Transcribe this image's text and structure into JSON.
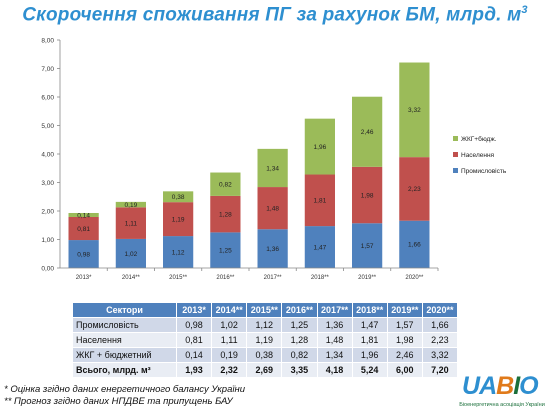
{
  "title": {
    "main": "Скорочення споживання ПГ за рахунок БМ, млрд. м",
    "sup": "3"
  },
  "chart_data": {
    "type": "bar",
    "stacked": true,
    "categories": [
      "2013*",
      "2014**",
      "2015**",
      "2016**",
      "2017**",
      "2018**",
      "2019**",
      "2020**"
    ],
    "series": [
      {
        "name": "Промисловість",
        "color": "#4f81bd",
        "values": [
          0.98,
          1.02,
          1.12,
          1.25,
          1.36,
          1.47,
          1.57,
          1.66
        ]
      },
      {
        "name": "Населення",
        "color": "#c0504d",
        "values": [
          0.81,
          1.11,
          1.19,
          1.28,
          1.48,
          1.81,
          1.98,
          2.23
        ]
      },
      {
        "name": "ЖКГ+бюдж.",
        "color": "#9bbb59",
        "values": [
          0.14,
          0.19,
          0.38,
          0.82,
          1.34,
          1.96,
          2.46,
          3.32
        ]
      }
    ],
    "segment_labels": [
      [
        "0,98",
        "1,02",
        "1,12",
        "1,25",
        "1,36",
        "1,47",
        "1,57",
        "1,66"
      ],
      [
        "0,81",
        "1,11",
        "1,19",
        "1,28",
        "1,48",
        "1,81",
        "1,98",
        "2,23"
      ],
      [
        "0,14",
        "0,19",
        "0,38",
        "0,82",
        "1,34",
        "1,96",
        "2,46",
        "3,32"
      ]
    ],
    "ylim": [
      0,
      8
    ],
    "yticks": [
      "0,00",
      "1,00",
      "2,00",
      "3,00",
      "4,00",
      "5,00",
      "6,00",
      "7,00",
      "8,00"
    ],
    "legend_order": [
      "ЖКГ+бюдж.",
      "Населення",
      "Промисловість"
    ],
    "legend_position": "right",
    "grid": false
  },
  "table": {
    "header": [
      "Сектори",
      "2013*",
      "2014**",
      "2015**",
      "2016**",
      "2017**",
      "2018**",
      "2019**",
      "2020**"
    ],
    "rows": [
      {
        "label": "Промисловість",
        "values": [
          "0,98",
          "1,02",
          "1,12",
          "1,25",
          "1,36",
          "1,47",
          "1,57",
          "1,66"
        ]
      },
      {
        "label": "Населення",
        "values": [
          "0,81",
          "1,11",
          "1,19",
          "1,28",
          "1,48",
          "1,81",
          "1,98",
          "2,23"
        ]
      },
      {
        "label": "ЖКГ + бюджетний",
        "values": [
          "0,14",
          "0,19",
          "0,38",
          "0,82",
          "1,34",
          "1,96",
          "2,46",
          "3,32"
        ]
      },
      {
        "label": "Всього, млрд. м³",
        "values": [
          "1,93",
          "2,32",
          "2,69",
          "3,35",
          "4,18",
          "5,24",
          "6,00",
          "7,20"
        ]
      }
    ]
  },
  "notes": {
    "n1": "* Оцінка згідно даних енергетичного балансу України",
    "n2": "** Прогноз згідно даних НПДВЕ та припущень БАУ"
  },
  "logo": {
    "word": "UABIO",
    "tagline": "Біоенергетична асоціація України",
    "colors": [
      "#2e8fd0",
      "#2e8fd0",
      "#e07a1a",
      "#1a6f3a",
      "#2e8fd0"
    ]
  }
}
